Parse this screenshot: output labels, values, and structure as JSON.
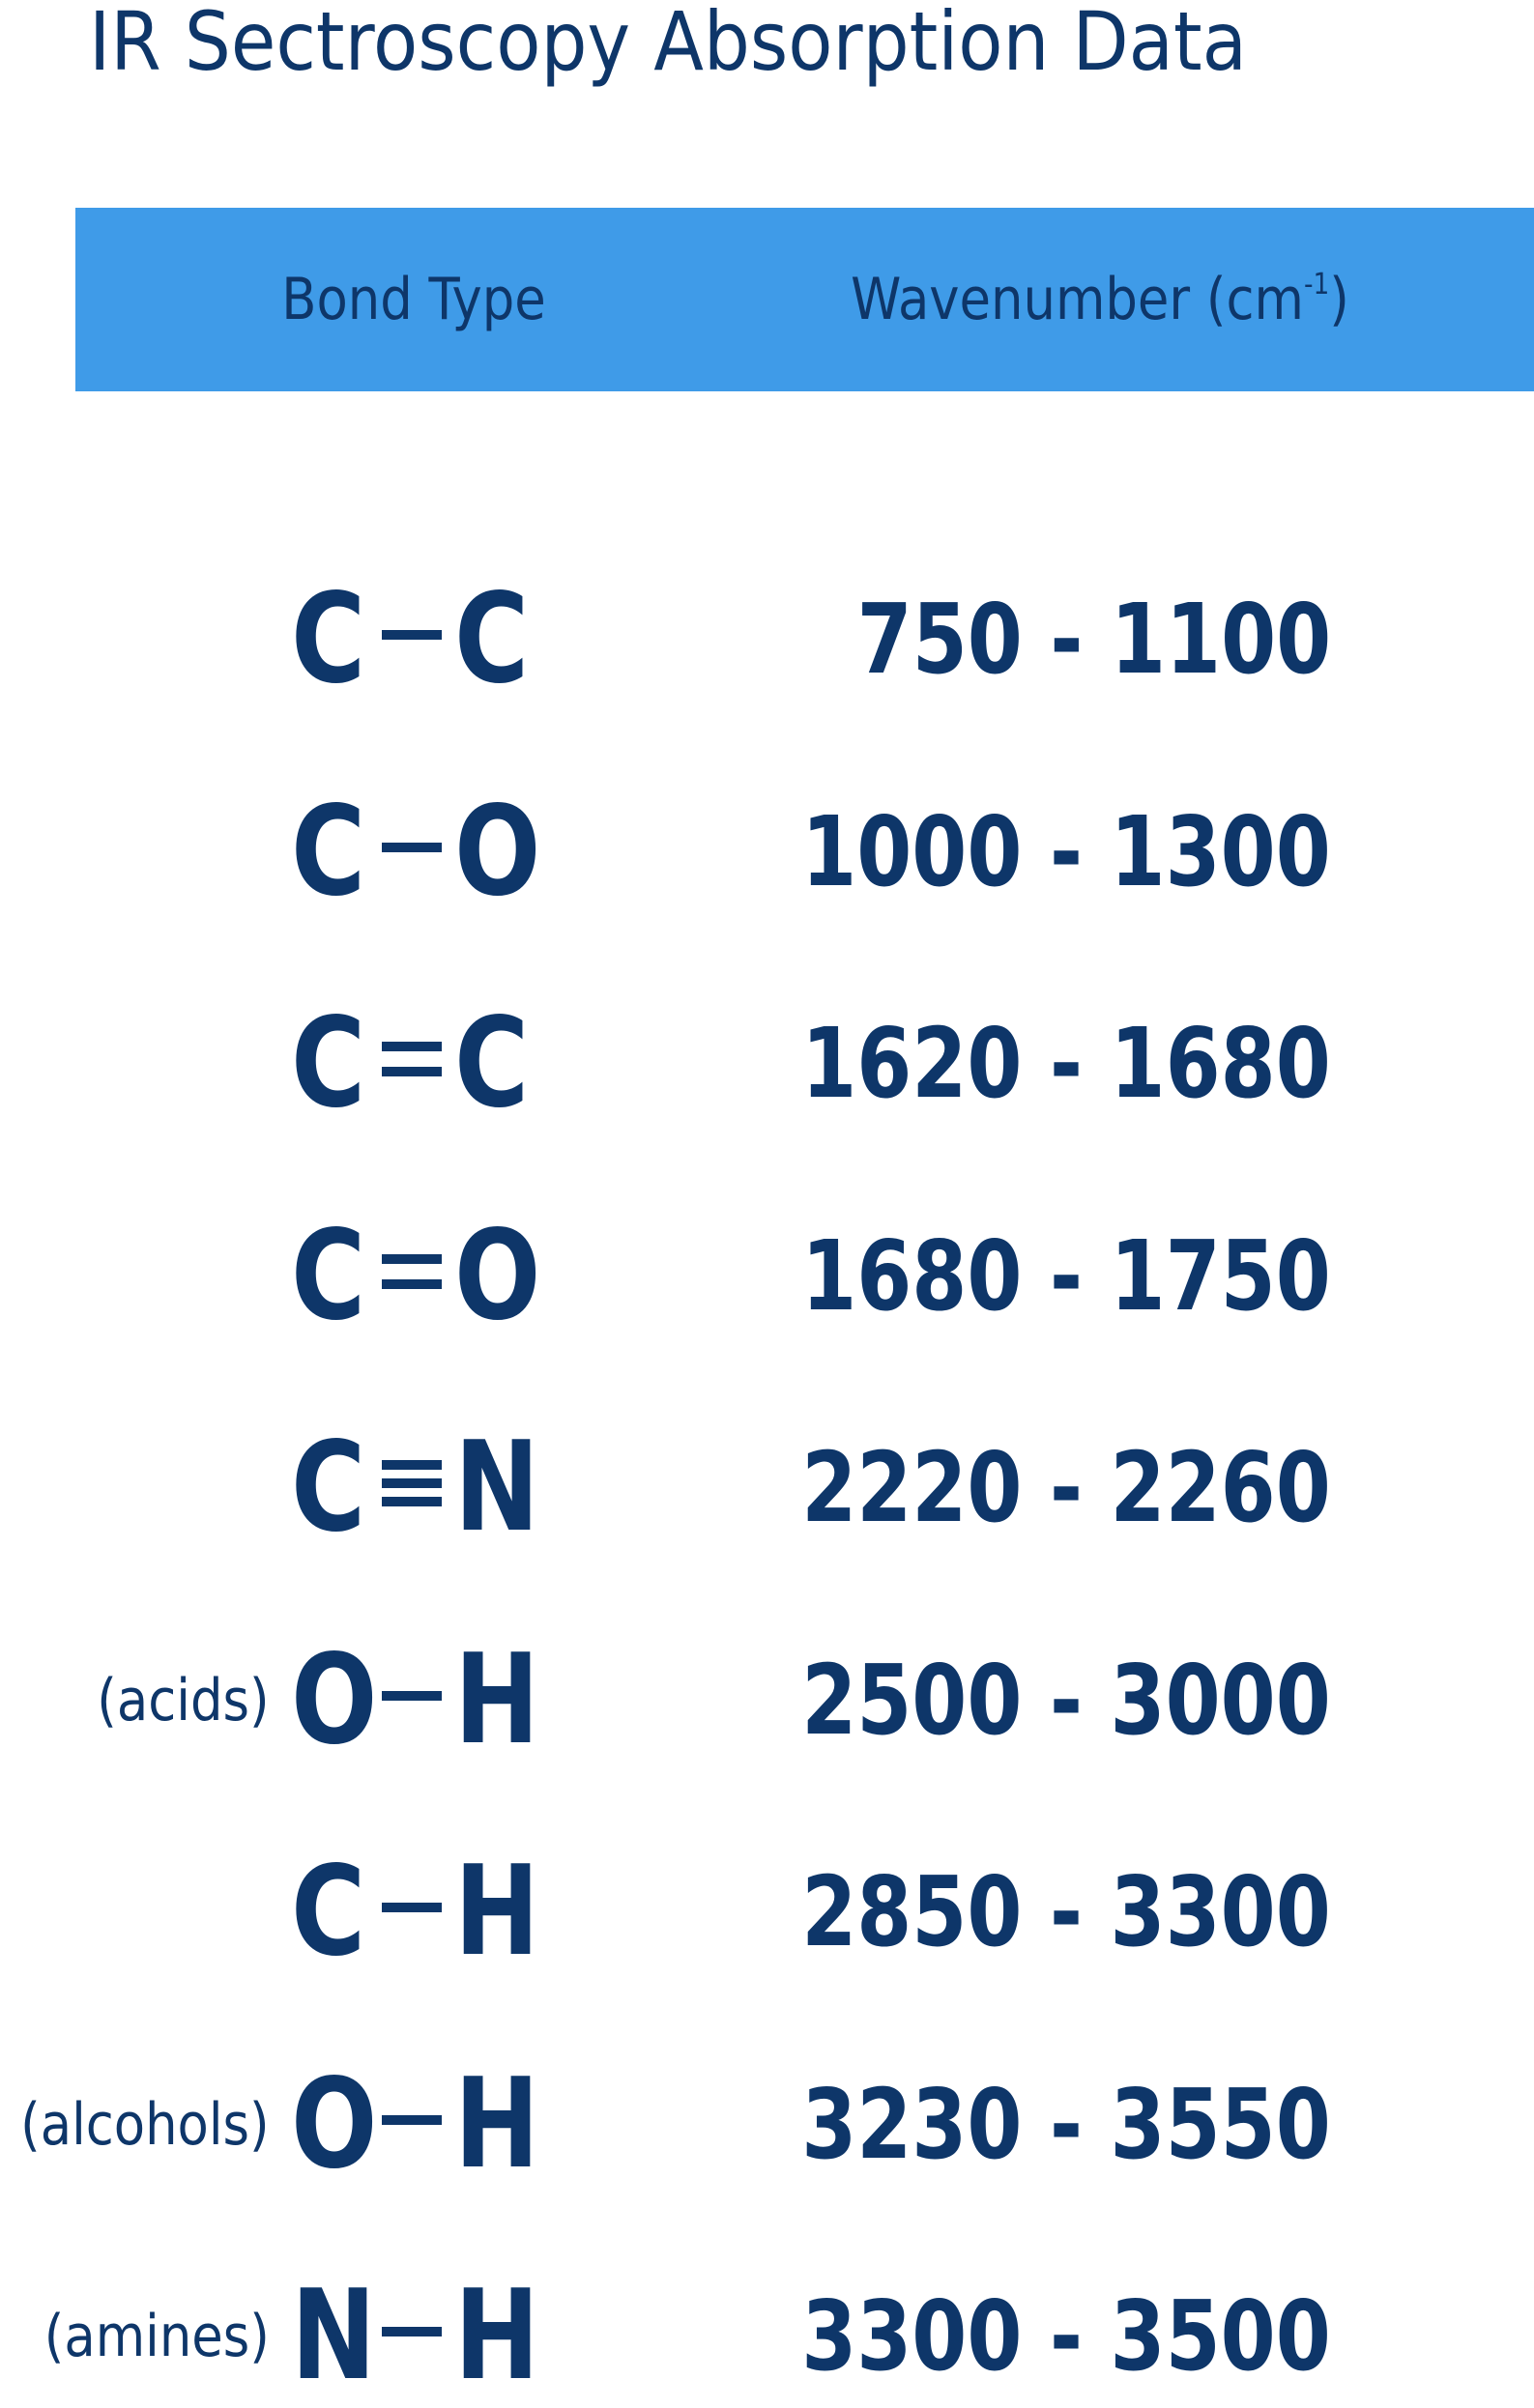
{
  "title": "IR Sectroscopy Absorption Data",
  "header": {
    "bond_type": "Bond Type",
    "wavenumber": "Wavenumber (cm",
    "wavenumber_sup": "-1",
    "wavenumber_close": ")",
    "background_color": "#3f9be8"
  },
  "text_color": "#0e3669",
  "rows": [
    {
      "note": "",
      "atom1": "C",
      "bond": "single",
      "atom2": "C",
      "range": "750 - 1100"
    },
    {
      "note": "",
      "atom1": "C",
      "bond": "single",
      "atom2": "O",
      "range": "1000 - 1300"
    },
    {
      "note": "",
      "atom1": "C",
      "bond": "double",
      "atom2": "C",
      "range": "1620 - 1680"
    },
    {
      "note": "",
      "atom1": "C",
      "bond": "double",
      "atom2": "O",
      "range": "1680 - 1750"
    },
    {
      "note": "",
      "atom1": "C",
      "bond": "triple",
      "atom2": "N",
      "range": "2220 - 2260"
    },
    {
      "note": "(acids)",
      "atom1": "O",
      "bond": "single",
      "atom2": "H",
      "range": "2500 - 3000"
    },
    {
      "note": "",
      "atom1": "C",
      "bond": "single",
      "atom2": "H",
      "range": "2850 - 3300"
    },
    {
      "note": "(alcohols)",
      "atom1": "O",
      "bond": "single",
      "atom2": "H",
      "range": "3230 - 3550"
    },
    {
      "note": "(amines)",
      "atom1": "N",
      "bond": "single",
      "atom2": "H",
      "range": "3300 - 3500"
    }
  ]
}
